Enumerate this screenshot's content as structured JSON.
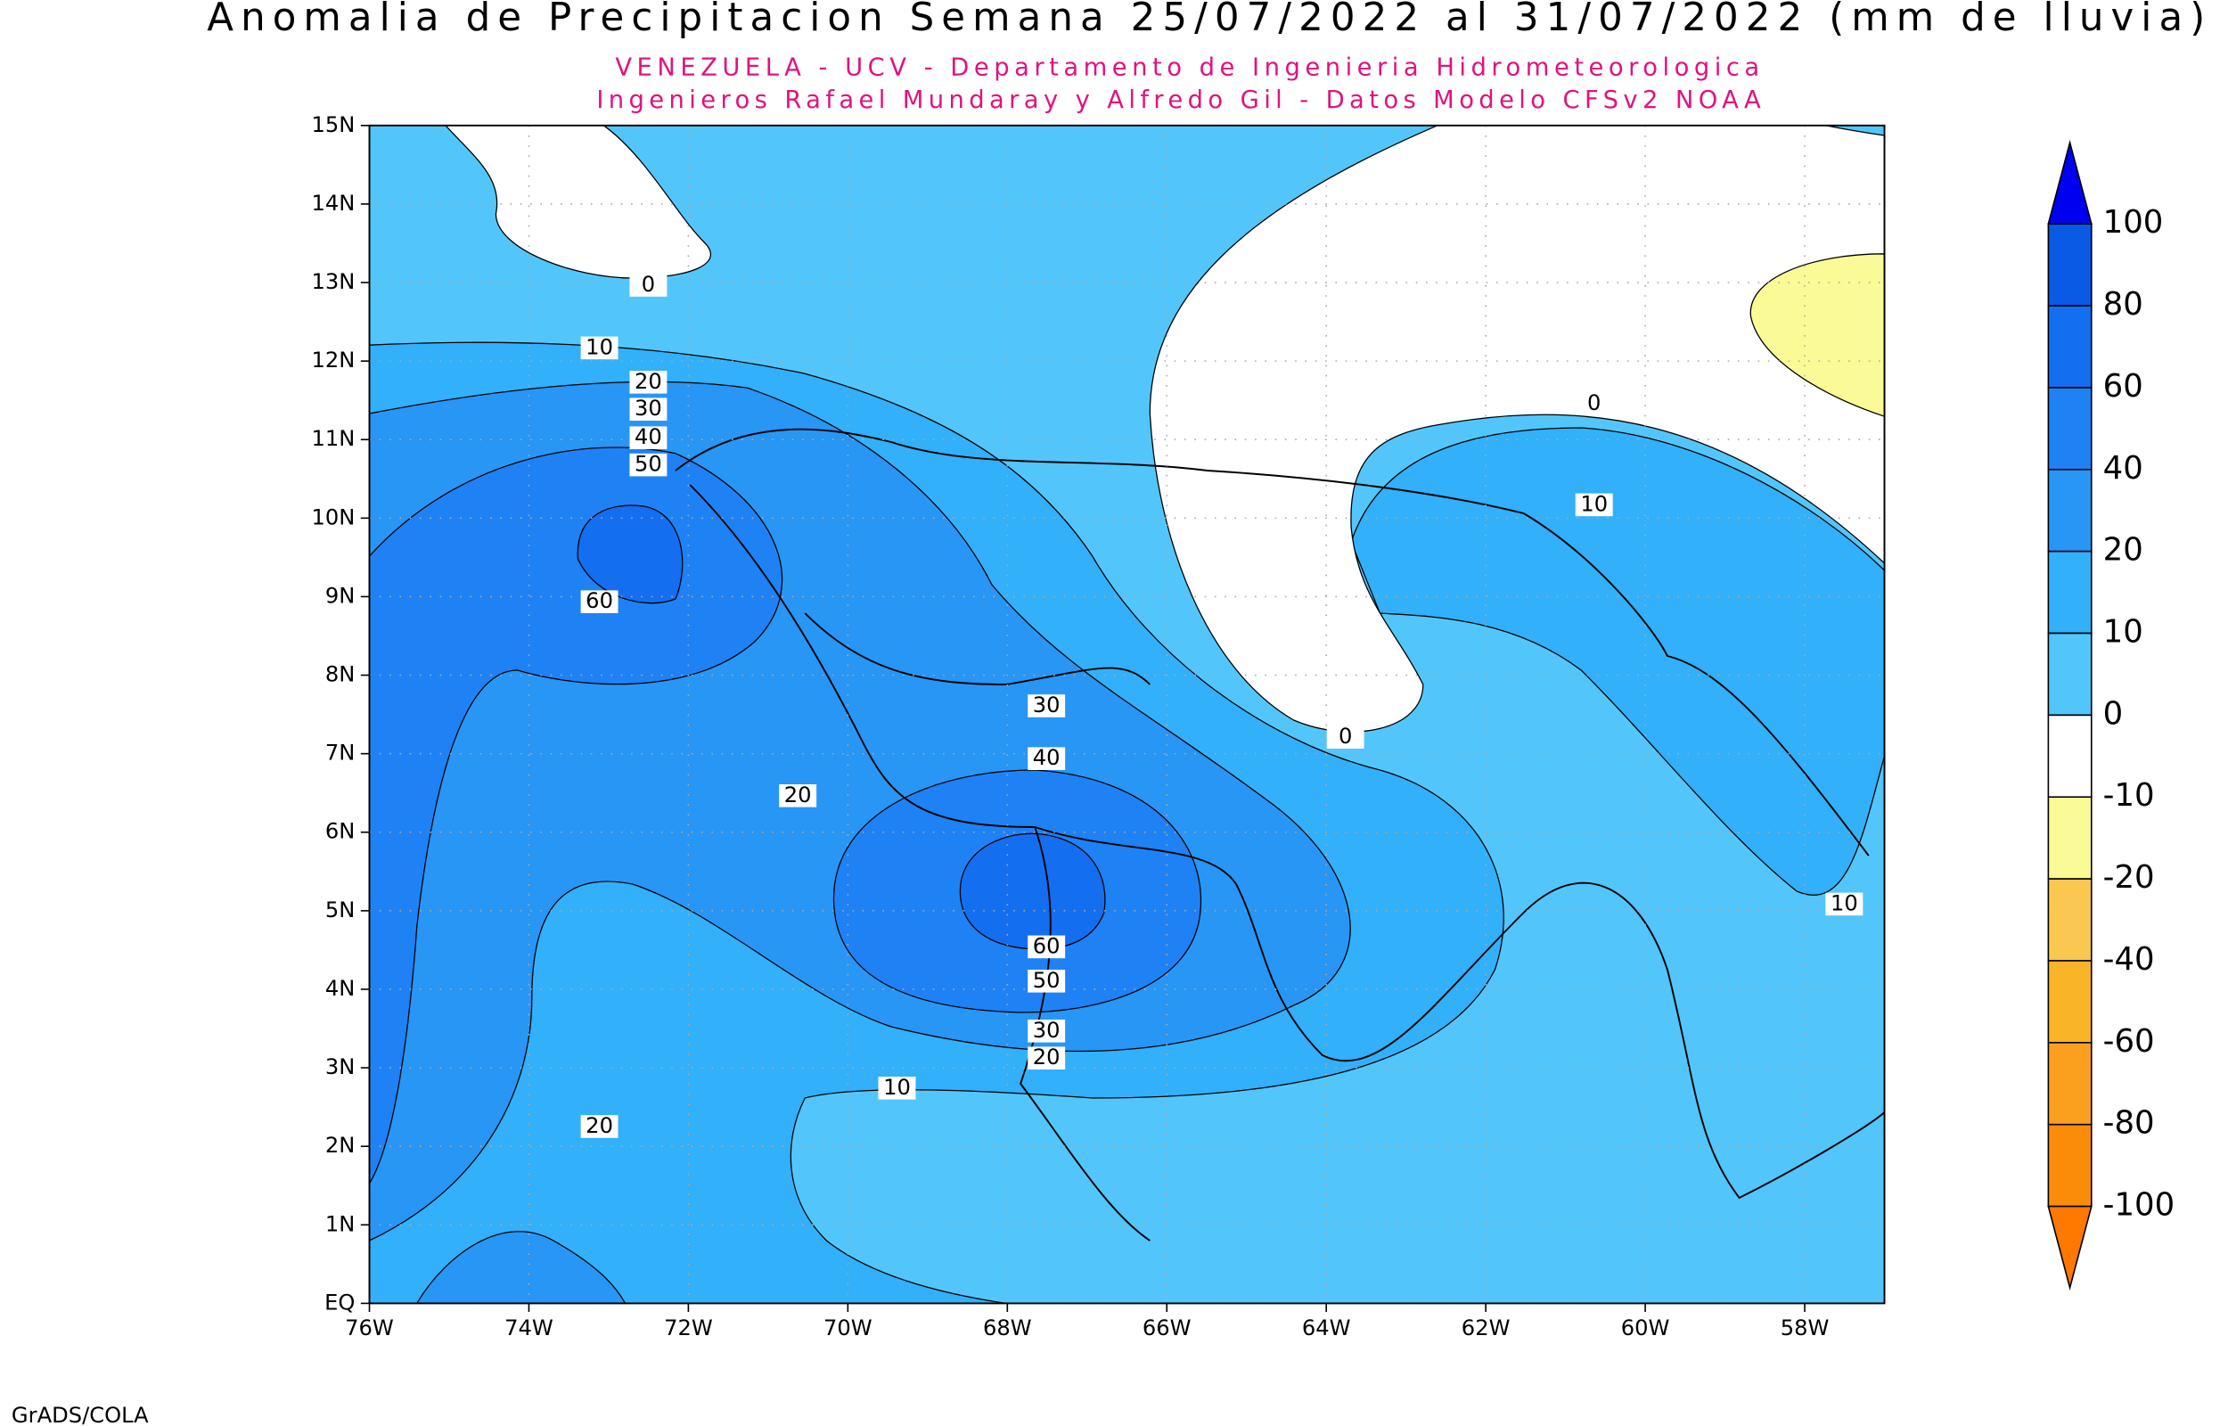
{
  "title": "Anomalia de Precipitacion Semana 25/07/2022 al 31/07/2022 (mm de lluvia)",
  "subtitle_lines": [
    "VENEZUELA - UCV - Departamento de Ingenieria Hidrometeorologica",
    "Ingenieros Rafael Mundaray y Alfredo Gil - Datos Modelo CFSv2 NOAA"
  ],
  "footer": "GrADS/COLA",
  "map": {
    "xlim": [
      -76,
      -57
    ],
    "ylim": [
      0,
      15
    ],
    "grid": true,
    "xticks": [
      {
        "value": -76,
        "label": "76W"
      },
      {
        "value": -74,
        "label": "74W"
      },
      {
        "value": -72,
        "label": "72W"
      },
      {
        "value": -70,
        "label": "70W"
      },
      {
        "value": -68,
        "label": "68W"
      },
      {
        "value": -66,
        "label": "66W"
      },
      {
        "value": -64,
        "label": "64W"
      },
      {
        "value": -62,
        "label": "62W"
      },
      {
        "value": -60,
        "label": "60W"
      },
      {
        "value": -58,
        "label": "58W"
      }
    ],
    "yticks": [
      {
        "value": 0,
        "label": "EQ"
      },
      {
        "value": 1,
        "label": "1N"
      },
      {
        "value": 2,
        "label": "2N"
      },
      {
        "value": 3,
        "label": "3N"
      },
      {
        "value": 4,
        "label": "4N"
      },
      {
        "value": 5,
        "label": "5N"
      },
      {
        "value": 6,
        "label": "6N"
      },
      {
        "value": 7,
        "label": "7N"
      },
      {
        "value": 8,
        "label": "8N"
      },
      {
        "value": 9,
        "label": "9N"
      },
      {
        "value": 10,
        "label": "10N"
      },
      {
        "value": 11,
        "label": "11N"
      },
      {
        "value": 12,
        "label": "12N"
      },
      {
        "value": 13,
        "label": "13N"
      },
      {
        "value": 14,
        "label": "14N"
      },
      {
        "value": 15,
        "label": "15N"
      }
    ],
    "contour_labels": [
      0,
      10,
      20,
      30,
      40,
      50,
      60,
      30,
      40,
      20,
      60,
      50,
      30,
      20,
      10,
      20,
      0,
      0,
      10,
      10
    ]
  },
  "colorbar": {
    "levels": [
      100,
      80,
      60,
      40,
      20,
      10,
      0,
      -10,
      -20,
      -40,
      -60,
      -80,
      -100
    ],
    "colors": [
      "#0000f0",
      "#0a5ae6",
      "#146ef0",
      "#1e82f5",
      "#2896f5",
      "#32b0fa",
      "#52c6fa",
      "#ffffff",
      "#fafa96",
      "#fac850",
      "#fab428",
      "#faa01e",
      "#fa8c0a",
      "#ff7800"
    ]
  }
}
